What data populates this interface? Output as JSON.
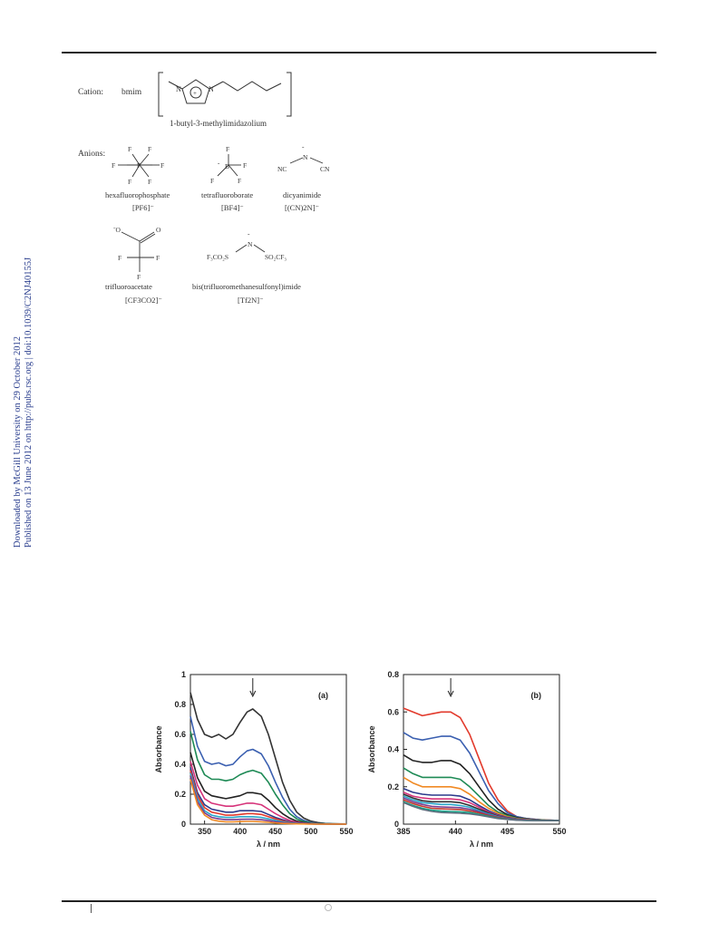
{
  "side_note": {
    "line1": "Downloaded by McGill University on 29 October 2012",
    "line2": "Published on 13 June 2012 on http://pubs.rsc.org | doi:10.1039/C2NJ40155J"
  },
  "figure_ionic_liquids": {
    "cation_label": "Cation:",
    "cation_abbrev": "bmim",
    "cation_name": "1-butyl-3-methylimidazolium",
    "anions_label": "Anions:",
    "anions": [
      {
        "name": "hexafluorophosphate",
        "formula": "[PF6]⁻"
      },
      {
        "name": "tetrafluoroborate",
        "formula": "[BF4]⁻"
      },
      {
        "name": "dicyanimide",
        "formula": "[(CN)2N]⁻"
      },
      {
        "name": "trifluoroacetate",
        "formula": "[CF3CO2]⁻"
      },
      {
        "name": "bis(trifluoromethanesulfonyl)imide",
        "formula": "[Tf2N]⁻"
      }
    ]
  },
  "chart_data": [
    {
      "type": "line",
      "panel_label": "(a)",
      "xlabel": "λ / nm",
      "ylabel": "Absorbance",
      "xlim": [
        330,
        550
      ],
      "ylim": [
        0,
        1
      ],
      "xticks": [
        350,
        400,
        450,
        500,
        550
      ],
      "yticks": [
        0,
        0.2,
        0.4,
        0.6,
        0.8,
        1
      ],
      "ytick_labels": [
        "0",
        "0.2",
        "0.4",
        "0.6",
        "0.8",
        "1"
      ],
      "arrow_x": 418,
      "x": [
        330,
        340,
        350,
        360,
        370,
        380,
        390,
        400,
        410,
        418,
        430,
        440,
        450,
        460,
        470,
        480,
        490,
        500,
        510,
        520,
        530,
        540,
        550
      ],
      "series": [
        {
          "color": "#333333",
          "values": [
            0.88,
            0.7,
            0.6,
            0.58,
            0.6,
            0.57,
            0.6,
            0.68,
            0.75,
            0.77,
            0.72,
            0.6,
            0.44,
            0.28,
            0.16,
            0.08,
            0.04,
            0.02,
            0.01,
            0.005,
            0.003,
            0.002,
            0.001
          ]
        },
        {
          "color": "#3a5fb0",
          "values": [
            0.72,
            0.52,
            0.42,
            0.4,
            0.41,
            0.39,
            0.4,
            0.45,
            0.49,
            0.5,
            0.47,
            0.39,
            0.28,
            0.18,
            0.1,
            0.05,
            0.025,
            0.012,
            0.006,
            0.004,
            0.002,
            0.001,
            0.001
          ]
        },
        {
          "color": "#1e8a55",
          "values": [
            0.62,
            0.43,
            0.33,
            0.3,
            0.3,
            0.29,
            0.3,
            0.33,
            0.35,
            0.36,
            0.34,
            0.28,
            0.2,
            0.13,
            0.07,
            0.035,
            0.017,
            0.009,
            0.004,
            0.003,
            0.002,
            0.001,
            0.001
          ]
        },
        {
          "color": "#222222",
          "values": [
            0.48,
            0.31,
            0.22,
            0.19,
            0.18,
            0.17,
            0.18,
            0.19,
            0.21,
            0.21,
            0.2,
            0.16,
            0.11,
            0.07,
            0.04,
            0.02,
            0.01,
            0.005,
            0.003,
            0.002,
            0.001,
            0.001,
            0.0
          ]
        },
        {
          "color": "#d6337a",
          "values": [
            0.42,
            0.26,
            0.17,
            0.14,
            0.13,
            0.12,
            0.12,
            0.13,
            0.14,
            0.14,
            0.13,
            0.1,
            0.07,
            0.045,
            0.025,
            0.013,
            0.007,
            0.004,
            0.002,
            0.001,
            0.001,
            0.0,
            0.0
          ]
        },
        {
          "color": "#2c3a8c",
          "values": [
            0.38,
            0.21,
            0.13,
            0.1,
            0.09,
            0.08,
            0.08,
            0.09,
            0.09,
            0.09,
            0.085,
            0.065,
            0.045,
            0.03,
            0.016,
            0.008,
            0.004,
            0.002,
            0.001,
            0.001,
            0.0,
            0.0,
            0.0
          ]
        },
        {
          "color": "#e23a2c",
          "values": [
            0.36,
            0.19,
            0.11,
            0.08,
            0.07,
            0.06,
            0.06,
            0.065,
            0.07,
            0.07,
            0.065,
            0.05,
            0.035,
            0.022,
            0.012,
            0.006,
            0.003,
            0.002,
            0.001,
            0.0,
            0.0,
            0.0,
            0.0
          ]
        },
        {
          "color": "#2aa6c9",
          "values": [
            0.34,
            0.17,
            0.09,
            0.06,
            0.05,
            0.045,
            0.045,
            0.05,
            0.05,
            0.05,
            0.045,
            0.035,
            0.025,
            0.016,
            0.009,
            0.005,
            0.003,
            0.002,
            0.001,
            0.0,
            0.0,
            0.0,
            0.0
          ]
        },
        {
          "color": "#7a3c8f",
          "values": [
            0.32,
            0.15,
            0.075,
            0.045,
            0.035,
            0.03,
            0.03,
            0.032,
            0.033,
            0.033,
            0.03,
            0.023,
            0.016,
            0.01,
            0.006,
            0.003,
            0.002,
            0.001,
            0.0,
            0.0,
            0.0,
            0.0,
            0.0
          ]
        },
        {
          "color": "#f08a24",
          "values": [
            0.3,
            0.13,
            0.06,
            0.03,
            0.02,
            0.015,
            0.015,
            0.017,
            0.018,
            0.018,
            0.016,
            0.012,
            0.008,
            0.005,
            0.003,
            0.002,
            0.001,
            0.0,
            0.0,
            0.0,
            0.0,
            0.0,
            0.0
          ]
        }
      ]
    },
    {
      "type": "line",
      "panel_label": "(b)",
      "xlabel": "λ / nm",
      "ylabel": "Absorbance",
      "xlim": [
        385,
        550
      ],
      "ylim": [
        0,
        0.8
      ],
      "xticks": [
        385,
        440,
        495,
        550
      ],
      "yticks": [
        0,
        0.2,
        0.4,
        0.6,
        0.8
      ],
      "ytick_labels": [
        "0",
        "0.2",
        "0.4",
        "0.6",
        "0.8"
      ],
      "arrow_x": 435,
      "x": [
        385,
        395,
        405,
        415,
        425,
        435,
        445,
        455,
        465,
        475,
        485,
        495,
        505,
        515,
        525,
        535,
        550
      ],
      "series": [
        {
          "color": "#e23a2c",
          "values": [
            0.62,
            0.6,
            0.58,
            0.59,
            0.6,
            0.6,
            0.57,
            0.48,
            0.35,
            0.22,
            0.13,
            0.07,
            0.04,
            0.03,
            0.025,
            0.022,
            0.02
          ]
        },
        {
          "color": "#3a5fb0",
          "values": [
            0.49,
            0.46,
            0.45,
            0.46,
            0.47,
            0.47,
            0.45,
            0.38,
            0.28,
            0.18,
            0.11,
            0.06,
            0.04,
            0.03,
            0.025,
            0.022,
            0.02
          ]
        },
        {
          "color": "#222222",
          "values": [
            0.37,
            0.34,
            0.33,
            0.33,
            0.34,
            0.34,
            0.32,
            0.27,
            0.2,
            0.13,
            0.08,
            0.05,
            0.035,
            0.028,
            0.024,
            0.022,
            0.02
          ]
        },
        {
          "color": "#1e8a55",
          "values": [
            0.3,
            0.27,
            0.25,
            0.25,
            0.25,
            0.25,
            0.24,
            0.2,
            0.15,
            0.1,
            0.065,
            0.045,
            0.032,
            0.026,
            0.023,
            0.021,
            0.02
          ]
        },
        {
          "color": "#f08a24",
          "values": [
            0.25,
            0.22,
            0.2,
            0.2,
            0.2,
            0.2,
            0.19,
            0.16,
            0.12,
            0.085,
            0.058,
            0.04,
            0.03,
            0.025,
            0.022,
            0.021,
            0.02
          ]
        },
        {
          "color": "#2c3a8c",
          "values": [
            0.19,
            0.17,
            0.16,
            0.155,
            0.155,
            0.155,
            0.15,
            0.13,
            0.1,
            0.072,
            0.05,
            0.036,
            0.028,
            0.024,
            0.022,
            0.02,
            0.02
          ]
        },
        {
          "color": "#d6337a",
          "values": [
            0.17,
            0.15,
            0.14,
            0.135,
            0.135,
            0.135,
            0.13,
            0.115,
            0.09,
            0.065,
            0.046,
            0.034,
            0.027,
            0.023,
            0.021,
            0.02,
            0.02
          ]
        },
        {
          "color": "#333333",
          "values": [
            0.16,
            0.14,
            0.125,
            0.12,
            0.12,
            0.12,
            0.115,
            0.1,
            0.08,
            0.06,
            0.043,
            0.032,
            0.026,
            0.022,
            0.021,
            0.02,
            0.02
          ]
        },
        {
          "color": "#2aa6c9",
          "values": [
            0.15,
            0.13,
            0.115,
            0.11,
            0.105,
            0.105,
            0.1,
            0.09,
            0.072,
            0.055,
            0.04,
            0.03,
            0.025,
            0.022,
            0.02,
            0.02,
            0.02
          ]
        },
        {
          "color": "#7a3c8f",
          "values": [
            0.14,
            0.12,
            0.105,
            0.095,
            0.092,
            0.09,
            0.088,
            0.08,
            0.066,
            0.05,
            0.037,
            0.029,
            0.024,
            0.021,
            0.02,
            0.02,
            0.02
          ]
        },
        {
          "color": "#c0392b",
          "values": [
            0.13,
            0.11,
            0.095,
            0.085,
            0.082,
            0.08,
            0.078,
            0.071,
            0.06,
            0.046,
            0.035,
            0.027,
            0.023,
            0.021,
            0.02,
            0.02,
            0.02
          ]
        },
        {
          "color": "#16a085",
          "values": [
            0.12,
            0.1,
            0.085,
            0.075,
            0.07,
            0.068,
            0.066,
            0.062,
            0.053,
            0.042,
            0.032,
            0.026,
            0.022,
            0.02,
            0.02,
            0.02,
            0.02
          ]
        },
        {
          "color": "#5d6d7e",
          "values": [
            0.115,
            0.095,
            0.078,
            0.068,
            0.062,
            0.06,
            0.058,
            0.055,
            0.048,
            0.039,
            0.03,
            0.025,
            0.021,
            0.02,
            0.02,
            0.02,
            0.02
          ]
        }
      ]
    }
  ]
}
